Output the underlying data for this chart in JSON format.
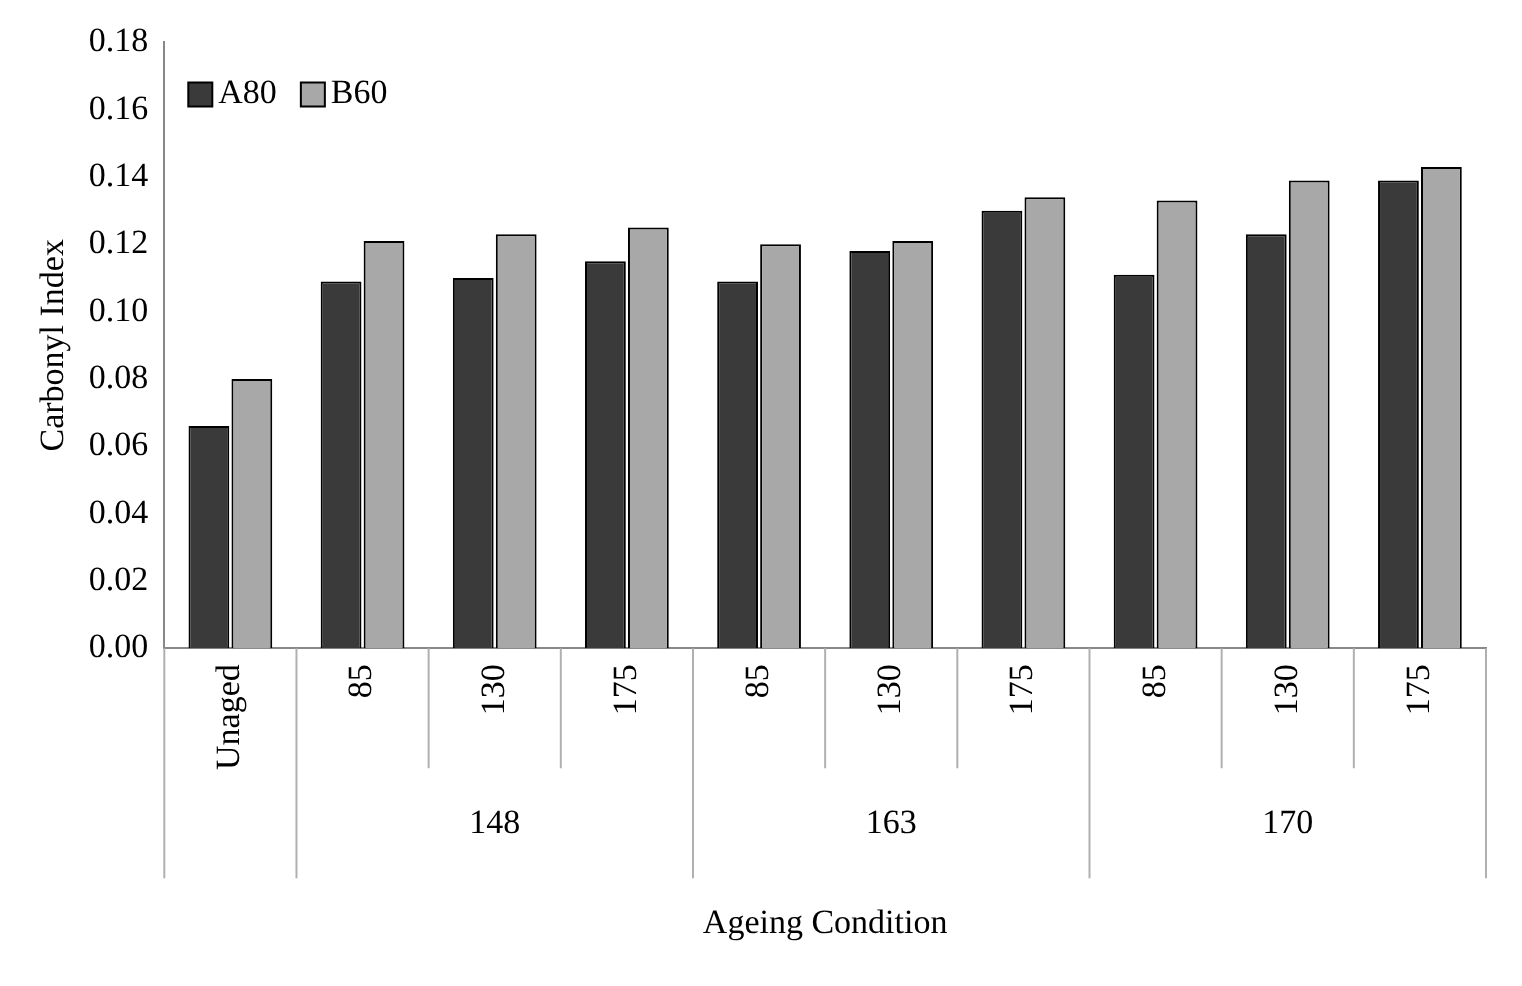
{
  "chart_data": {
    "type": "bar",
    "xlabel": "Ageing Condition",
    "ylabel": "Carbonyl Index",
    "categories": [
      "Unaged",
      "85",
      "130",
      "175",
      "85",
      "130",
      "175",
      "85",
      "130",
      "175"
    ],
    "annotations": [
      "148",
      "163",
      "170"
    ],
    "series": [
      {
        "name": "A80",
        "color": "#3a3a3a",
        "values": [
          0.066,
          0.109,
          0.11,
          0.115,
          0.109,
          0.118,
          0.13,
          0.111,
          0.123,
          0.139
        ]
      },
      {
        "name": "B60",
        "color": "#a8a8a8",
        "values": [
          0.08,
          0.121,
          0.123,
          0.125,
          0.12,
          0.121,
          0.134,
          0.133,
          0.139,
          0.143
        ]
      }
    ],
    "ylim": [
      0,
      0.18
    ],
    "yticks": [
      {
        "value": 0,
        "label": "0.00"
      },
      0.02,
      0.04,
      0.06,
      0.08,
      {
        "value": 0.1,
        "label": "0.10"
      },
      0.12,
      0.14,
      0.16,
      0.18
    ],
    "grid": false,
    "legend": "top left"
  }
}
